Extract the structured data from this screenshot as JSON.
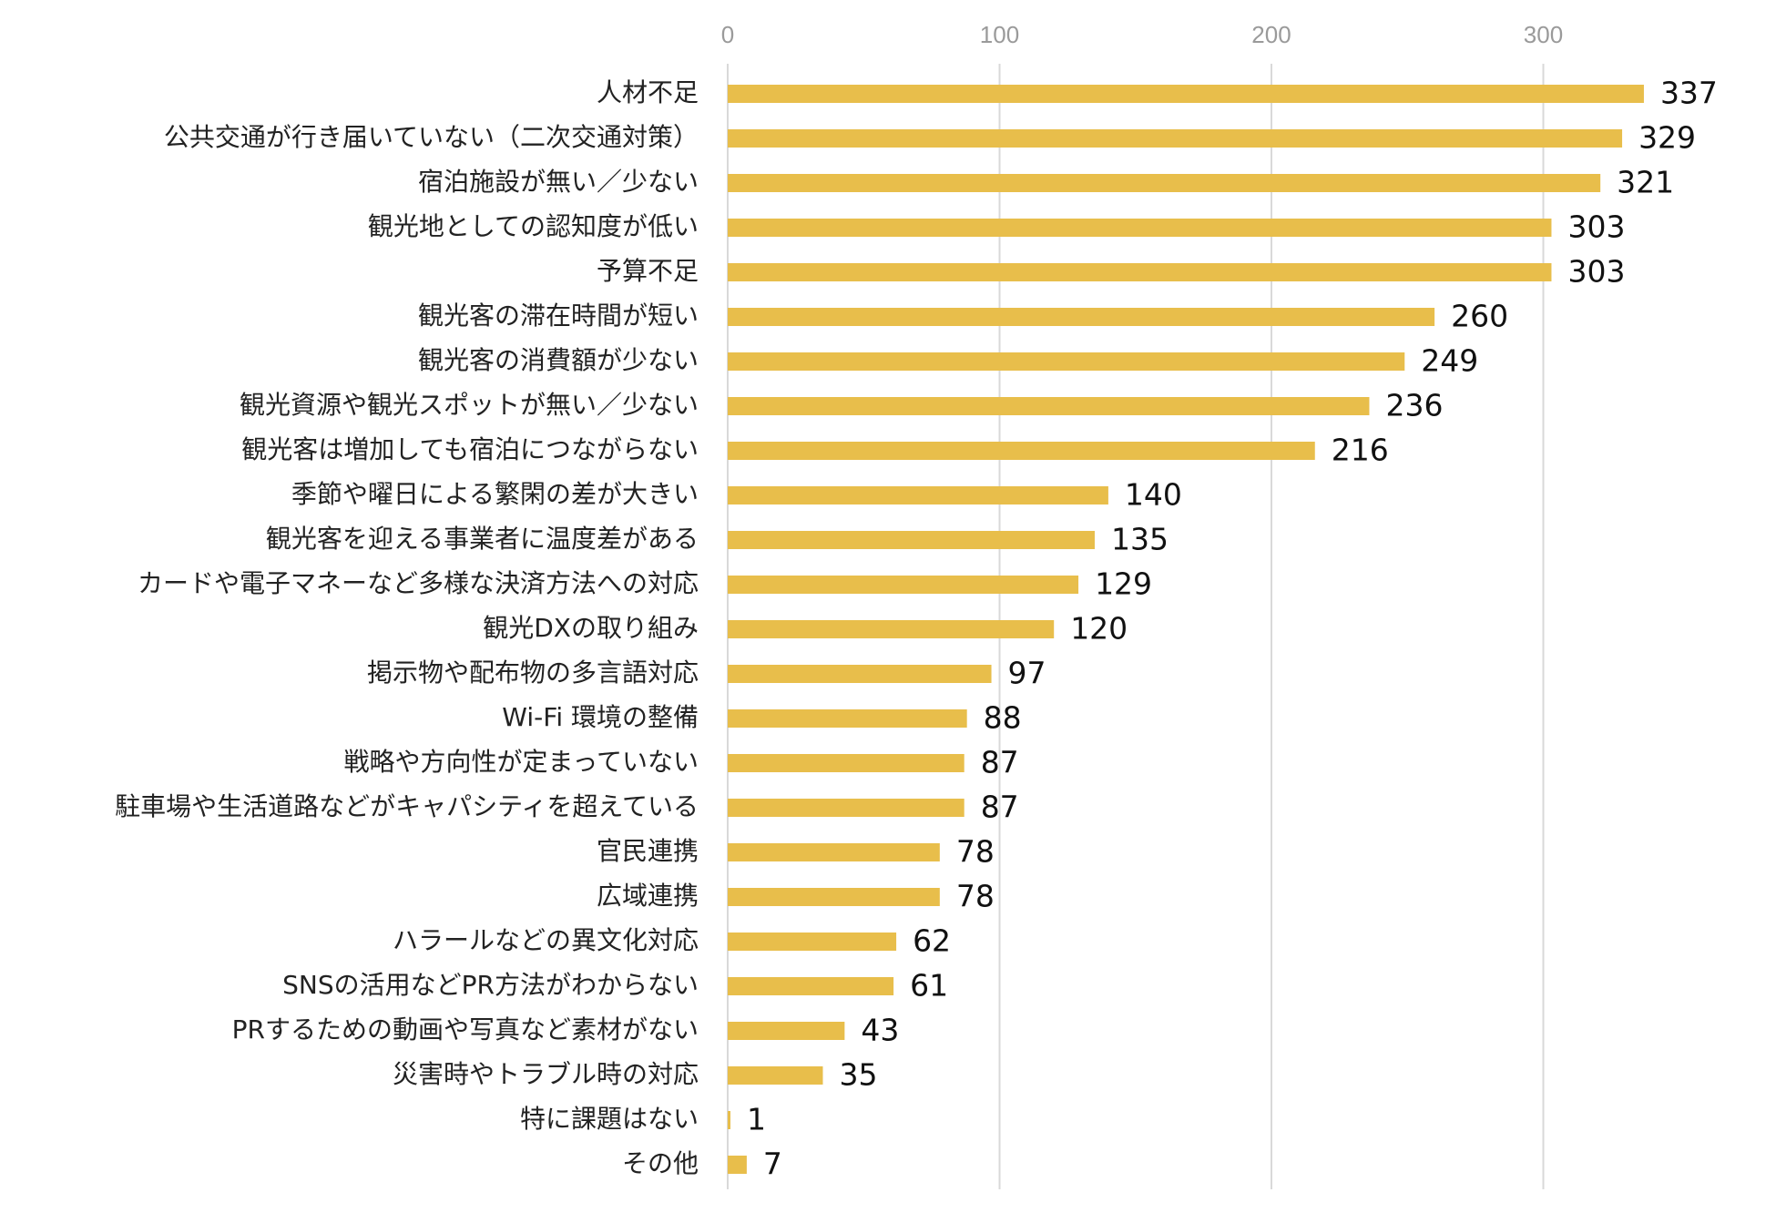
{
  "chart_data": {
    "type": "bar",
    "orientation": "horizontal",
    "title": "",
    "xlabel": "",
    "ylabel": "",
    "xlim": [
      0,
      340
    ],
    "x_ticks": [
      "0",
      "100",
      "200",
      "300"
    ],
    "grid": true,
    "legend": "none",
    "bar_color": "#E8BE4B",
    "gridline_color": "#D9D9D9",
    "categories": [
      "人材不足",
      "公共交通が行き届いていない（二次交通対策）",
      "宿泊施設が無い／少ない",
      "観光地としての認知度が低い",
      "予算不足",
      "観光客の滞在時間が短い",
      "観光客の消費額が少ない",
      "観光資源や観光スポットが無い／少ない",
      "観光客は増加しても宿泊につながらない",
      "季節や曜日による繁閑の差が大きい",
      "観光客を迎える事業者に温度差がある",
      "カードや電子マネーなど多様な決済方法への対応",
      "観光DXの取り組み",
      "掲示物や配布物の多言語対応",
      "Wi-Fi 環境の整備",
      "戦略や方向性が定まっていない",
      "駐車場や生活道路などがキャパシティを超えている",
      "官民連携",
      "広域連携",
      "ハラールなどの異文化対応",
      "SNSの活用などPR方法がわからない",
      "PRするための動画や写真など素材がない",
      "災害時やトラブル時の対応",
      "特に課題はない",
      "その他"
    ],
    "values": [
      337,
      329,
      321,
      303,
      303,
      260,
      249,
      236,
      216,
      140,
      135,
      129,
      120,
      97,
      88,
      87,
      87,
      78,
      78,
      62,
      61,
      43,
      35,
      1,
      7
    ]
  }
}
